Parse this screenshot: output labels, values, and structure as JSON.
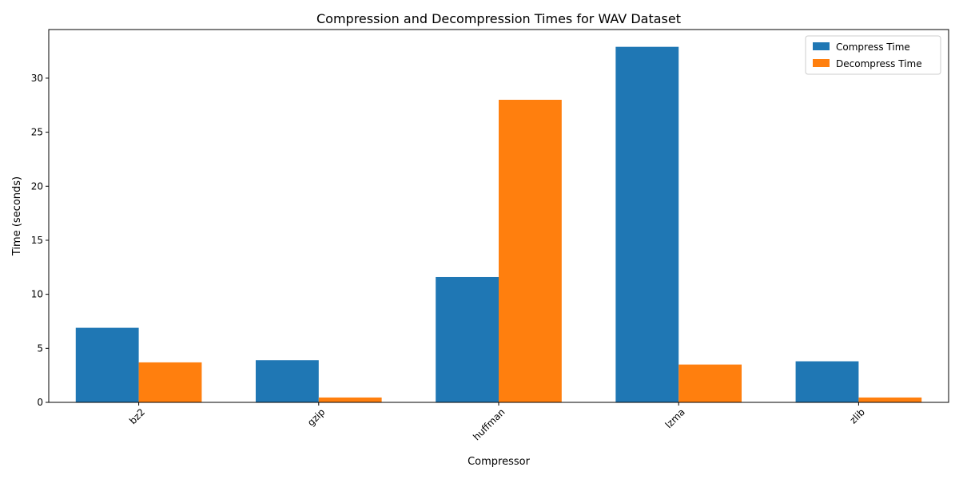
{
  "chart_data": {
    "type": "bar",
    "title": "Compression and Decompression Times for WAV Dataset",
    "xlabel": "Compressor",
    "ylabel": "Time (seconds)",
    "categories": [
      "bz2",
      "gzip",
      "huffman",
      "lzma",
      "zlib"
    ],
    "series": [
      {
        "name": "Compress Time",
        "color": "#1f77b4",
        "values": [
          6.9,
          3.9,
          11.6,
          32.9,
          3.8
        ]
      },
      {
        "name": "Decompress Time",
        "color": "#ff7f0e",
        "values": [
          3.7,
          0.45,
          28.0,
          3.5,
          0.45
        ]
      }
    ],
    "ylim": [
      0,
      34.5
    ],
    "yticks": [
      0,
      5,
      10,
      15,
      20,
      25,
      30
    ],
    "xtick_rotation": 45,
    "grid": false,
    "legend": "top-right"
  }
}
